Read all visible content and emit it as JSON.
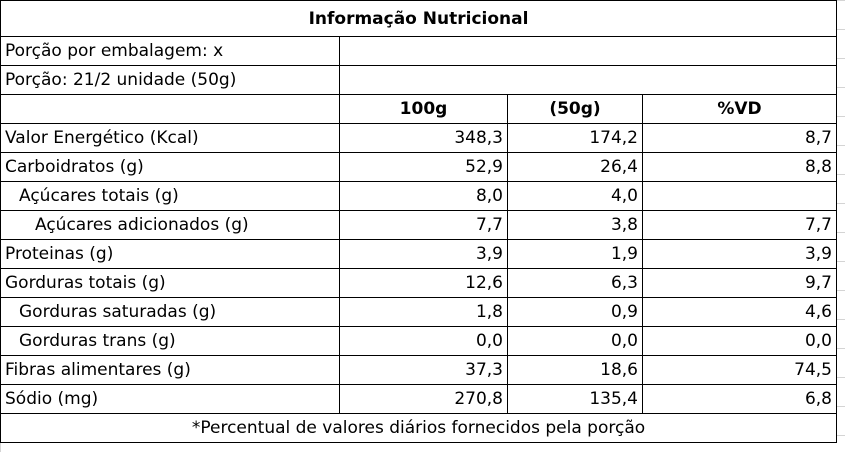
{
  "title": "Informação Nutricional",
  "serving_per_package": "Porção por embalagem: x",
  "serving_size": "Porção: 21/2 unidade (50g)",
  "headers": {
    "col1": "100g",
    "col2": "(50g)",
    "col3": "%VD"
  },
  "rows": [
    {
      "label": "Valor Energético (Kcal)",
      "v100": "348,3",
      "v50": "174,2",
      "vd": "8,7"
    },
    {
      "label": "Carboidratos (g)",
      "v100": "52,9",
      "v50": "26,4",
      "vd": "8,8"
    },
    {
      "label": "Açúcares totais (g)",
      "v100": "8,0",
      "v50": "4,0",
      "vd": ""
    },
    {
      "label": "Açúcares adicionados (g)",
      "v100": "7,7",
      "v50": "3,8",
      "vd": "7,7"
    },
    {
      "label": "Proteinas (g)",
      "v100": "3,9",
      "v50": "1,9",
      "vd": "3,9"
    },
    {
      "label": "Gorduras totais (g)",
      "v100": "12,6",
      "v50": "6,3",
      "vd": "9,7"
    },
    {
      "label": "Gorduras saturadas (g)",
      "v100": "1,8",
      "v50": "0,9",
      "vd": "4,6"
    },
    {
      "label": "Gorduras trans (g)",
      "v100": "0,0",
      "v50": "0,0",
      "vd": "0,0"
    },
    {
      "label": "Fibras alimentares (g)",
      "v100": "37,3",
      "v50": "18,6",
      "vd": "74,5"
    },
    {
      "label": "Sódio (mg)",
      "v100": "270,8",
      "v50": "135,4",
      "vd": "6,8"
    }
  ],
  "footnote": "*Percentual de valores diários fornecidos pela porção"
}
